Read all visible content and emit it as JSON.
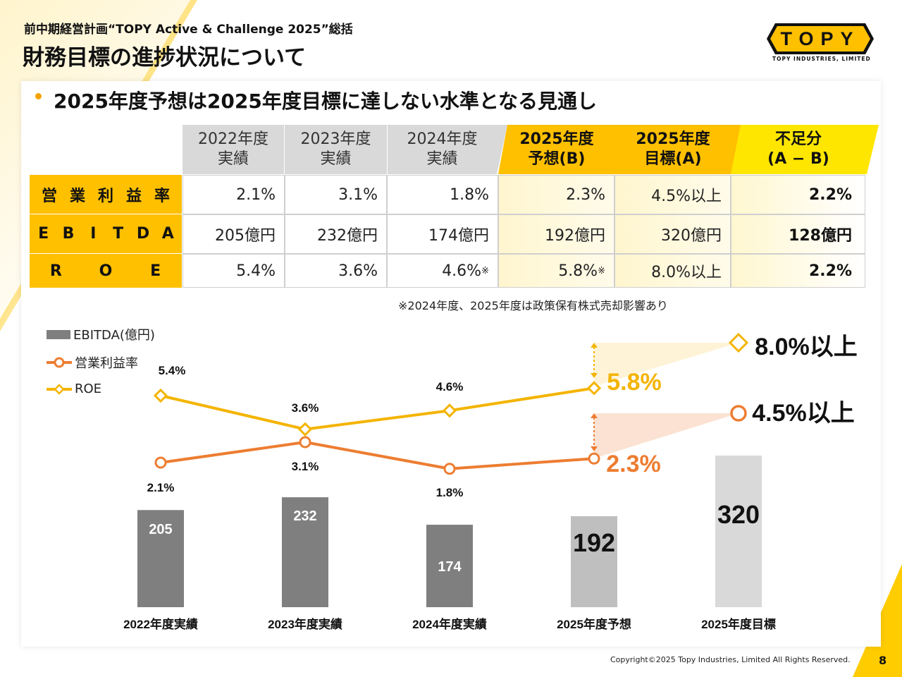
{
  "header": {
    "subtitle": "前中期経営計画“TOPY Active & Challenge 2025”総括",
    "title": "財務目標の進捗状況について"
  },
  "logo": {
    "text": "TOPY",
    "company": "TOPY INDUSTRIES, LIMITED"
  },
  "headline": "2025年度予想は2025年度目標に達しない水準となる見通し",
  "table": {
    "headers": [
      "2022年度\n実績",
      "2023年度\n実績",
      "2024年度\n実績",
      "2025年度\n予想(B)",
      "2025年度\n目標(A)",
      "不足分\n(A − B)"
    ],
    "rows": [
      {
        "label": [
          "営",
          "業",
          "利",
          "益",
          "率"
        ],
        "cells": [
          "2.1%",
          "3.1%",
          "1.8%",
          "2.3%",
          "4.5%以上",
          "2.2%"
        ]
      },
      {
        "label": [
          "E",
          "B",
          "I",
          "T",
          "D",
          "A"
        ],
        "cells": [
          "205億円",
          "232億円",
          "174億円",
          "192億円",
          "320億円",
          "128億円"
        ]
      },
      {
        "label": [
          "R",
          "O",
          "E"
        ],
        "cells": [
          "5.4%",
          "3.6%",
          "4.6%",
          "5.8%",
          "8.0%以上",
          "2.2%"
        ]
      }
    ],
    "note_mark": "※",
    "note": "※2024年度、2025年度は政策保有株式売却影響あり"
  },
  "chart_data": {
    "type": "bar",
    "categories": [
      "2022年度実績",
      "2023年度実績",
      "2024年度実績",
      "2025年度予想",
      "2025年度目標"
    ],
    "series": [
      {
        "name": "EBITDA(億円)",
        "type": "bar",
        "values": [
          205,
          232,
          174,
          192,
          320
        ],
        "labels": [
          "205",
          "232",
          "174",
          "192",
          "320"
        ],
        "colors": [
          "#7f7f7f",
          "#7f7f7f",
          "#7f7f7f",
          "#bfbfbf",
          "#d9d9d9"
        ]
      },
      {
        "name": "営業利益率",
        "type": "line",
        "values": [
          2.1,
          3.1,
          1.8,
          2.3,
          4.5
        ],
        "labels": [
          "2.1%",
          "3.1%",
          "1.8%",
          "2.3%",
          "4.5%以上"
        ],
        "color": "#ed7d31"
      },
      {
        "name": "ROE",
        "type": "line",
        "values": [
          5.4,
          3.6,
          4.6,
          5.8,
          8.0
        ],
        "labels": [
          "5.4%",
          "3.6%",
          "4.6%",
          "5.8%",
          "8.0%以上"
        ],
        "color": "#f4b400"
      }
    ],
    "legend": "top-left",
    "grid": false
  },
  "footer": {
    "copyright": "Copyright©2025 Topy Industries, Limited All Rights Reserved.",
    "page": "8"
  }
}
